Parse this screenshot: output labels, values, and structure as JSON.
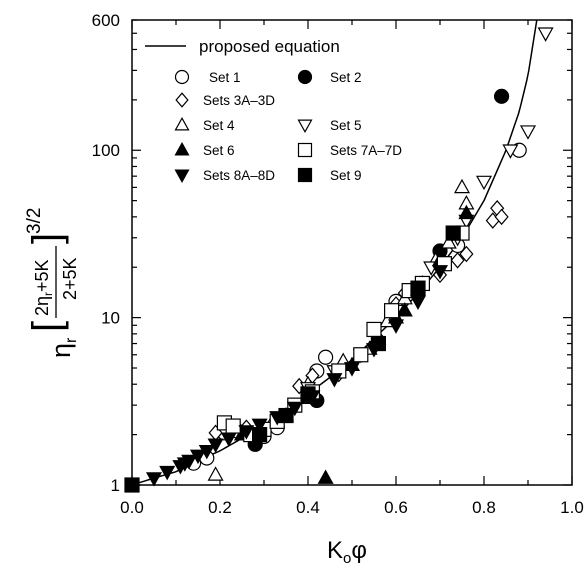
{
  "chart_data": {
    "type": "scatter",
    "title": "",
    "xlabel": {
      "main": "K",
      "sub": "o",
      "tail": "φ"
    },
    "ylabel": {
      "lead": "η",
      "lead_sub": "r",
      "num": "2η",
      "num_sub": "r",
      "num_tail": "+5K",
      "den": "2+5K",
      "exponent": "3/2"
    },
    "x_range": [
      0.0,
      1.0
    ],
    "y_range": [
      1,
      600
    ],
    "y_scale": "log",
    "x_ticks": [
      "0.0",
      "0.2",
      "0.4",
      "0.6",
      "0.8",
      "1.0"
    ],
    "y_ticks": [
      "1",
      "10",
      "100",
      "600"
    ],
    "legend_position": "top-left",
    "legend": {
      "curve_label": "proposed equation",
      "entries": [
        {
          "label": "Set 1",
          "marker": "circle-open"
        },
        {
          "label": "Set 2",
          "marker": "circle-filled"
        },
        {
          "label": "Sets 3A–3D",
          "marker": "diamond-open"
        },
        {
          "label": "Set 4",
          "marker": "triangle-up-open"
        },
        {
          "label": "Set 5",
          "marker": "triangle-down-open"
        },
        {
          "label": "Set 6",
          "marker": "triangle-up-filled"
        },
        {
          "label": "Sets 7A–7D",
          "marker": "square-open"
        },
        {
          "label": "Sets 8A–8D",
          "marker": "triangle-down-filled"
        },
        {
          "label": "Set 9",
          "marker": "square-filled"
        }
      ]
    },
    "curve": {
      "x": [
        0.0,
        0.05,
        0.1,
        0.15,
        0.2,
        0.25,
        0.3,
        0.35,
        0.4,
        0.45,
        0.5,
        0.55,
        0.6,
        0.65,
        0.7,
        0.75,
        0.8,
        0.85,
        0.88,
        0.9,
        0.92
      ],
      "y": [
        1.0,
        1.1,
        1.2,
        1.4,
        1.6,
        1.9,
        2.25,
        2.8,
        3.5,
        4.4,
        5.6,
        7.5,
        10.0,
        14.0,
        20.0,
        30.0,
        50.0,
        100.0,
        170.0,
        280.0,
        600.0
      ]
    },
    "series": [
      {
        "name": "Set 1",
        "marker": "circle-open",
        "x": [
          0.14,
          0.17,
          0.21,
          0.24,
          0.27,
          0.3,
          0.33,
          0.42,
          0.44,
          0.6,
          0.65,
          0.7,
          0.74,
          0.88
        ],
        "y": [
          1.35,
          1.45,
          2.05,
          2.1,
          2.0,
          1.95,
          2.2,
          4.8,
          5.8,
          12.5,
          14.0,
          22.0,
          27.0,
          100.0
        ]
      },
      {
        "name": "Set 2",
        "marker": "circle-filled",
        "x": [
          0.28,
          0.42,
          0.7,
          0.84
        ],
        "y": [
          1.75,
          3.2,
          25.0,
          210.0
        ]
      },
      {
        "name": "Sets 3A–3D",
        "marker": "diamond-open",
        "x": [
          0.19,
          0.26,
          0.38,
          0.41,
          0.47,
          0.56,
          0.6,
          0.62,
          0.66,
          0.7,
          0.74,
          0.76,
          0.82,
          0.83,
          0.84
        ],
        "y": [
          2.05,
          2.2,
          3.9,
          4.5,
          4.6,
          7.5,
          12.0,
          14.0,
          16.0,
          18.0,
          22.0,
          24.0,
          38.0,
          45.0,
          40.0
        ]
      },
      {
        "name": "Set 4",
        "marker": "triangle-up-open",
        "x": [
          0.19,
          0.32,
          0.4,
          0.48,
          0.54,
          0.58,
          0.62,
          0.69,
          0.72,
          0.75,
          0.76
        ],
        "y": [
          1.15,
          2.4,
          4.0,
          5.5,
          6.5,
          9.5,
          13.0,
          22.0,
          28.0,
          60.0,
          48.0
        ]
      },
      {
        "name": "Set 5",
        "marker": "triangle-down-open",
        "x": [
          0.4,
          0.46,
          0.52,
          0.6,
          0.68,
          0.74,
          0.76,
          0.8,
          0.86,
          0.9,
          0.94
        ],
        "y": [
          3.8,
          4.8,
          6.0,
          11.0,
          20.0,
          30.0,
          38.0,
          65.0,
          100.0,
          130.0,
          500.0
        ]
      },
      {
        "name": "Set 6",
        "marker": "triangle-up-filled",
        "x": [
          0.25,
          0.35,
          0.4,
          0.44,
          0.5,
          0.56,
          0.6,
          0.62,
          0.7,
          0.76
        ],
        "y": [
          2.0,
          2.6,
          3.3,
          1.1,
          5.2,
          7.5,
          10.0,
          11.0,
          22.0,
          42.0
        ]
      },
      {
        "name": "Sets 7A–7D",
        "marker": "square-open",
        "x": [
          0.21,
          0.23,
          0.27,
          0.3,
          0.33,
          0.37,
          0.41,
          0.47,
          0.52,
          0.55,
          0.59,
          0.63,
          0.66,
          0.71,
          0.75
        ],
        "y": [
          2.35,
          2.25,
          2.0,
          2.15,
          2.4,
          3.0,
          3.6,
          4.8,
          6.0,
          8.5,
          11.0,
          14.5,
          16.0,
          21.0,
          32.0
        ]
      },
      {
        "name": "Sets 8A–8D",
        "marker": "triangle-down-filled",
        "x": [
          0.05,
          0.08,
          0.11,
          0.12,
          0.13,
          0.15,
          0.17,
          0.19,
          0.22,
          0.26,
          0.29,
          0.33,
          0.37,
          0.41,
          0.46,
          0.5,
          0.55,
          0.6,
          0.65,
          0.7
        ],
        "y": [
          1.1,
          1.2,
          1.3,
          1.35,
          1.4,
          1.5,
          1.6,
          1.75,
          1.9,
          2.1,
          2.3,
          2.55,
          2.9,
          3.4,
          4.3,
          5.0,
          6.5,
          9.0,
          12.5,
          19.0
        ]
      },
      {
        "name": "Set 9",
        "marker": "square-filled",
        "x": [
          0.0,
          0.29,
          0.35,
          0.4,
          0.56,
          0.65,
          0.73
        ],
        "y": [
          1.0,
          2.0,
          2.6,
          3.5,
          7.0,
          15.0,
          32.0
        ]
      }
    ]
  }
}
